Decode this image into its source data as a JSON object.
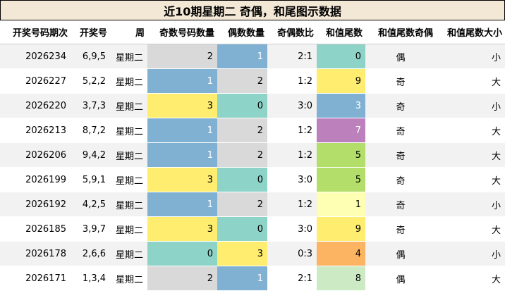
{
  "title": "近10期星期二 奇偶，和尾图示数据",
  "columns": [
    "开奖号码期次",
    "开奖号",
    "周",
    "奇数号码数量",
    "偶数数量",
    "奇偶数比",
    "和值尾数",
    "和值尾数奇偶",
    "和值尾数大小"
  ],
  "rows": [
    {
      "period": "2026234",
      "numbers": "6,9,5",
      "week": "星期二",
      "odd": "2",
      "even": "1",
      "ratio": "2:1",
      "tail": "0",
      "parity": "偶",
      "size": "小"
    },
    {
      "period": "2026227",
      "numbers": "5,2,2",
      "week": "星期二",
      "odd": "1",
      "even": "2",
      "ratio": "1:2",
      "tail": "9",
      "parity": "奇",
      "size": "大"
    },
    {
      "period": "2026220",
      "numbers": "3,7,3",
      "week": "星期二",
      "odd": "3",
      "even": "0",
      "ratio": "3:0",
      "tail": "3",
      "parity": "奇",
      "size": "小"
    },
    {
      "period": "2026213",
      "numbers": "8,7,2",
      "week": "星期二",
      "odd": "1",
      "even": "2",
      "ratio": "1:2",
      "tail": "7",
      "parity": "奇",
      "size": "大"
    },
    {
      "period": "2026206",
      "numbers": "9,4,2",
      "week": "星期二",
      "odd": "1",
      "even": "2",
      "ratio": "1:2",
      "tail": "5",
      "parity": "奇",
      "size": "大"
    },
    {
      "period": "2026199",
      "numbers": "5,9,1",
      "week": "星期二",
      "odd": "3",
      "even": "0",
      "ratio": "3:0",
      "tail": "5",
      "parity": "奇",
      "size": "大"
    },
    {
      "period": "2026192",
      "numbers": "4,2,5",
      "week": "星期二",
      "odd": "1",
      "even": "2",
      "ratio": "1:2",
      "tail": "1",
      "parity": "奇",
      "size": "小"
    },
    {
      "period": "2026185",
      "numbers": "3,9,7",
      "week": "星期二",
      "odd": "3",
      "even": "0",
      "ratio": "3:0",
      "tail": "9",
      "parity": "奇",
      "size": "大"
    },
    {
      "period": "2026178",
      "numbers": "2,6,6",
      "week": "星期二",
      "odd": "0",
      "even": "3",
      "ratio": "0:3",
      "tail": "4",
      "parity": "偶",
      "size": "小"
    },
    {
      "period": "2026171",
      "numbers": "1,3,4",
      "week": "星期二",
      "odd": "2",
      "even": "1",
      "ratio": "2:1",
      "tail": "8",
      "parity": "偶",
      "size": "大"
    }
  ],
  "count_colors": {
    "0": "#8dd3c7",
    "1": "#80b1d3",
    "2": "#d9d9d9",
    "3": "#ffed6f"
  },
  "tail_colors": {
    "0": "#8dd3c7",
    "1": "#ffffb3",
    "3": "#80b1d3",
    "4": "#fdb462",
    "5": "#b3de69",
    "7": "#bc80bd",
    "8": "#ccebc5",
    "9": "#ffed6f"
  },
  "light_text_values": {
    "count": [
      "1"
    ],
    "tail": [
      "3",
      "7"
    ]
  }
}
